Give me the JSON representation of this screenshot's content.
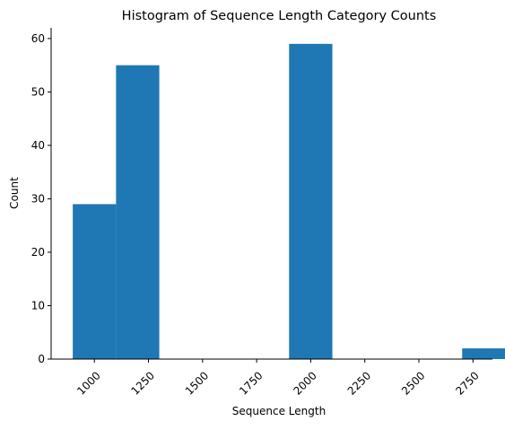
{
  "chart_data": {
    "type": "bar",
    "title": "Histogram of Sequence Length Category Counts",
    "xlabel": "Sequence Length",
    "ylabel": "Count",
    "xlim": [
      800,
      2840
    ],
    "ylim": [
      0,
      62
    ],
    "xticks": [
      1000,
      1250,
      1500,
      1750,
      2000,
      2250,
      2500,
      2750
    ],
    "xtick_labels": [
      "1000",
      "1250",
      "1500",
      "1750",
      "2000",
      "2250",
      "2500",
      "2750"
    ],
    "yticks": [
      0,
      10,
      20,
      30,
      40,
      50,
      60
    ],
    "ytick_labels": [
      "0",
      "10",
      "20",
      "30",
      "40",
      "50",
      "60"
    ],
    "bins": [
      {
        "start": 900,
        "end": 1100,
        "count": 29
      },
      {
        "start": 1100,
        "end": 1300,
        "count": 55
      },
      {
        "start": 1300,
        "end": 1500,
        "count": 0
      },
      {
        "start": 1500,
        "end": 1700,
        "count": 0
      },
      {
        "start": 1700,
        "end": 1900,
        "count": 0
      },
      {
        "start": 1900,
        "end": 2100,
        "count": 59
      },
      {
        "start": 2100,
        "end": 2300,
        "count": 0
      },
      {
        "start": 2300,
        "end": 2500,
        "count": 0
      },
      {
        "start": 2500,
        "end": 2700,
        "count": 0
      },
      {
        "start": 2700,
        "end": 2900,
        "count": 2
      }
    ],
    "bar_color": "#1f77b4",
    "grid": false,
    "spines": "left-bottom"
  }
}
